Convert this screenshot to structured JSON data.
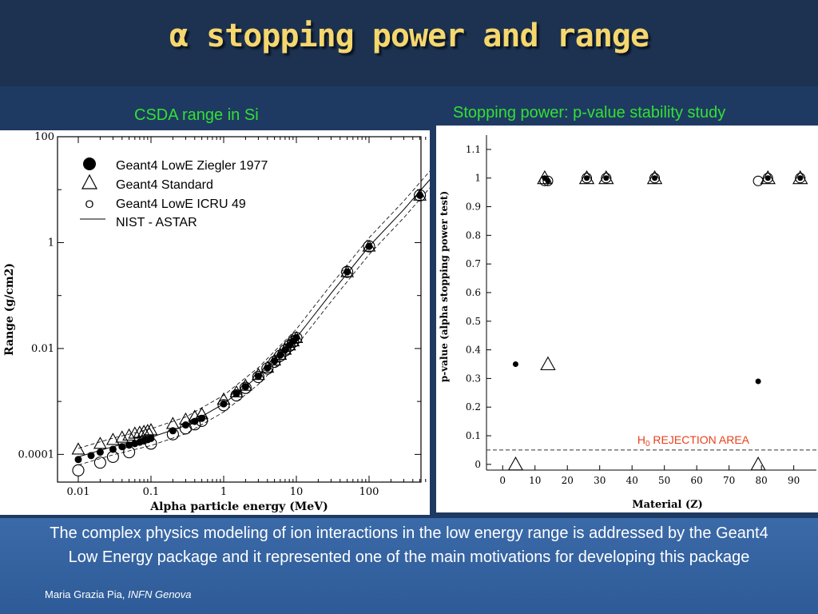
{
  "slide": {
    "title_symbol": "α",
    "title_text": "stopping power and range",
    "caption": "The complex physics modeling of ion interactions in the low energy range is addressed by the  Geant4 Low Energy package and it represented one of the main motivations for developing this package",
    "footer_name": "Maria Grazia Pia, ",
    "footer_affil": "INFN Genova",
    "colors": {
      "background": "#1c3250",
      "title": "#f5d76e",
      "panel_title": "#33e033",
      "rejection": "#e8401c"
    }
  },
  "chart_data": [
    {
      "type": "scatter",
      "panel_title": "CSDA range in Si",
      "xlabel": "Alpha particle energy (MeV)",
      "ylabel": "Range (g/cm2)",
      "xscale": "log",
      "yscale": "log",
      "xlim": [
        0.01,
        1000
      ],
      "ylim": [
        3e-05,
        100
      ],
      "xticks": [
        "0.01",
        "0.1",
        "1",
        "10",
        "100",
        "1000"
      ],
      "yticks": [
        "0.0001",
        "0.01",
        "1",
        "100"
      ],
      "legend_position": "top-left",
      "legend": [
        "Geant4 LowE Ziegler 1977",
        "Geant4 Standard",
        "Geant4 LowE ICRU 49",
        "NIST - ASTAR"
      ],
      "series": [
        {
          "name": "Geant4 LowE Ziegler 1977",
          "marker": "filled-circle",
          "x": [
            0.01,
            0.015,
            0.02,
            0.03,
            0.04,
            0.05,
            0.06,
            0.07,
            0.08,
            0.09,
            0.1,
            0.2,
            0.3,
            0.4,
            0.5,
            1,
            1.5,
            2,
            3,
            4,
            5,
            6,
            7,
            8,
            9,
            10,
            50,
            100,
            500,
            1000
          ],
          "y": [
            8e-05,
            9.5e-05,
            0.00011,
            0.000125,
            0.00014,
            0.00015,
            0.00016,
            0.00017,
            0.00018,
            0.00019,
            0.0002,
            0.00028,
            0.00036,
            0.00042,
            0.00048,
            0.0009,
            0.0014,
            0.0019,
            0.003,
            0.0043,
            0.0058,
            0.0075,
            0.0094,
            0.0114,
            0.0136,
            0.016,
            0.28,
            0.85,
            7.8,
            28
          ]
        },
        {
          "name": "Geant4 Standard",
          "marker": "open-triangle",
          "x": [
            0.01,
            0.02,
            0.03,
            0.04,
            0.05,
            0.06,
            0.07,
            0.08,
            0.09,
            0.1,
            0.2,
            0.3,
            0.4,
            0.5,
            1,
            1.5,
            2,
            3,
            4,
            5,
            6,
            7,
            8,
            9,
            10,
            50,
            100,
            500,
            1000
          ],
          "y": [
            0.000125,
            0.00016,
            0.00019,
            0.00021,
            0.00023,
            0.00025,
            0.00026,
            0.00027,
            0.00028,
            0.00029,
            0.00038,
            0.00046,
            0.00052,
            0.00058,
            0.0011,
            0.0015,
            0.002,
            0.0032,
            0.0044,
            0.006,
            0.0077,
            0.0096,
            0.0116,
            0.0138,
            0.016,
            0.28,
            0.85,
            7.8,
            28
          ]
        },
        {
          "name": "Geant4 LowE ICRU 49",
          "marker": "open-circle",
          "x": [
            0.01,
            0.02,
            0.03,
            0.05,
            0.1,
            0.2,
            0.3,
            0.4,
            0.5,
            1,
            1.5,
            2,
            3,
            4,
            5,
            6,
            7,
            8,
            9,
            10,
            50,
            100,
            500,
            1000
          ],
          "y": [
            5e-05,
            7e-05,
            9e-05,
            0.00011,
            0.00016,
            0.00024,
            0.00031,
            0.00037,
            0.00043,
            0.00085,
            0.0013,
            0.0018,
            0.0029,
            0.0042,
            0.0056,
            0.0073,
            0.0092,
            0.0112,
            0.0134,
            0.0158,
            0.28,
            0.85,
            7.8,
            28
          ]
        },
        {
          "name": "NIST - ASTAR",
          "marker": "line",
          "x": [
            0.01,
            0.03,
            0.1,
            0.3,
            1,
            3,
            10,
            30,
            100,
            300,
            1000
          ],
          "y": [
            9e-05,
            0.00014,
            0.00021,
            0.00035,
            0.0009,
            0.003,
            0.016,
            0.11,
            0.85,
            4.2,
            28
          ]
        }
      ]
    },
    {
      "type": "scatter",
      "panel_title": "Stopping power: p-value stability study",
      "xlabel": "Material (Z)",
      "ylabel": "p-value (alpha stopping power test)",
      "xlim": [
        -5,
        97
      ],
      "ylim": [
        -0.02,
        1.15
      ],
      "xticks": [
        "0",
        "10",
        "20",
        "30",
        "40",
        "50",
        "60",
        "70",
        "80",
        "90"
      ],
      "yticks": [
        "0",
        "0.1",
        "0.2",
        "0.3",
        "0.4",
        "0.5",
        "0.6",
        "0.7",
        "0.8",
        "0.9",
        "1",
        "1.1"
      ],
      "threshold": 0.05,
      "annotation_h": "H",
      "annotation_sub": "0",
      "annotation_rest": " REJECTION AREA",
      "series": [
        {
          "name": "Ziegler",
          "marker": "filled-circle",
          "x": [
            4,
            13,
            14,
            26,
            32,
            47,
            79,
            82,
            92
          ],
          "y": [
            0.35,
            1.0,
            0.99,
            1.0,
            1.0,
            1.0,
            0.29,
            1.0,
            1.0
          ]
        },
        {
          "name": "Standard",
          "marker": "open-triangle",
          "x": [
            4,
            13,
            14,
            26,
            32,
            47,
            79,
            82,
            92
          ],
          "y": [
            0.0,
            1.0,
            0.35,
            1.0,
            1.0,
            1.0,
            0.0,
            1.0,
            1.0
          ]
        },
        {
          "name": "ICRU",
          "marker": "open-circle",
          "x": [
            13,
            14,
            26,
            32,
            47,
            79,
            82,
            92
          ],
          "y": [
            0.99,
            0.99,
            1.0,
            1.0,
            1.0,
            0.99,
            1.0,
            1.0
          ]
        }
      ]
    }
  ]
}
